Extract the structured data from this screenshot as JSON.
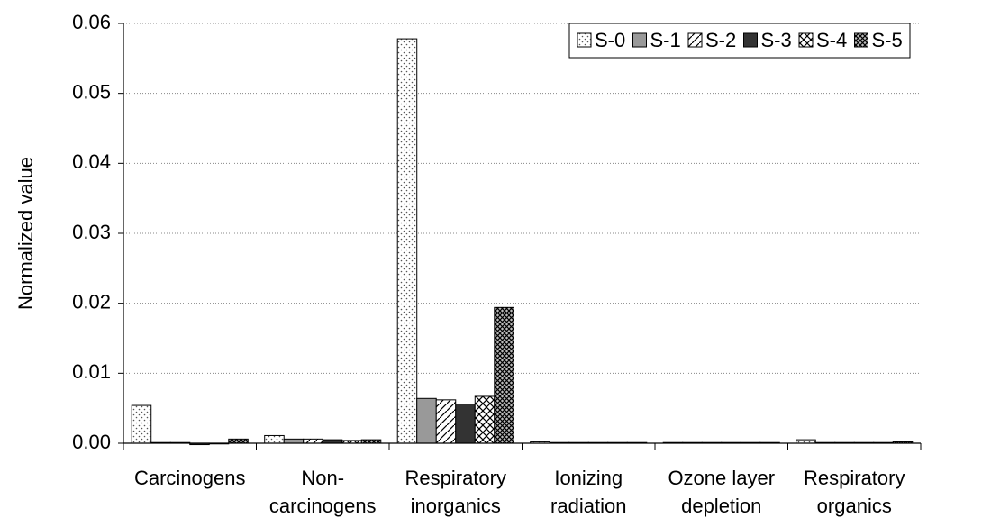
{
  "chart_data": {
    "type": "bar",
    "y_label": "Normalized value",
    "categories": [
      [
        "Carcinogens"
      ],
      [
        "Non-",
        "carcinogens"
      ],
      [
        "Respiratory",
        "inorganics"
      ],
      [
        "Ionizing",
        "radiation"
      ],
      [
        "Ozone layer",
        "depletion"
      ],
      [
        "Respiratory",
        "organics"
      ]
    ],
    "series": [
      {
        "name": "S-0",
        "color": "#ffffff",
        "pattern": "dots",
        "values": [
          0.0054,
          0.0011,
          0.0578,
          0.0002,
          0.0001,
          0.0005
        ]
      },
      {
        "name": "S-1",
        "color": "#999999",
        "pattern": "solid",
        "values": [
          0.0001,
          0.0006,
          0.0064,
          0.0001,
          0.0001,
          0.0001
        ]
      },
      {
        "name": "S-2",
        "color": "#ffffff",
        "pattern": "hatch",
        "values": [
          0.0001,
          0.0006,
          0.0062,
          0.0001,
          0.0001,
          0.0001
        ]
      },
      {
        "name": "S-3",
        "color": "#333333",
        "pattern": "solid",
        "values": [
          -0.0002,
          0.0005,
          0.0056,
          0.0001,
          0.0001,
          0.0001
        ]
      },
      {
        "name": "S-4",
        "color": "#ffffff",
        "pattern": "cross",
        "values": [
          -0.0001,
          0.0004,
          0.0067,
          0.0001,
          0.0001,
          0.0001
        ]
      },
      {
        "name": "S-5",
        "color": "#bbbbbb",
        "pattern": "dense-cross",
        "values": [
          0.0006,
          0.0005,
          0.0194,
          0.0001,
          0.0001,
          0.0002
        ]
      }
    ],
    "ylim": [
      0,
      0.06
    ],
    "yticks": [
      {
        "value": 0,
        "label": "0.00"
      },
      0.01,
      0.02,
      0.03,
      0.04,
      0.05,
      0.06
    ],
    "grid": true,
    "legend": "upper right"
  }
}
